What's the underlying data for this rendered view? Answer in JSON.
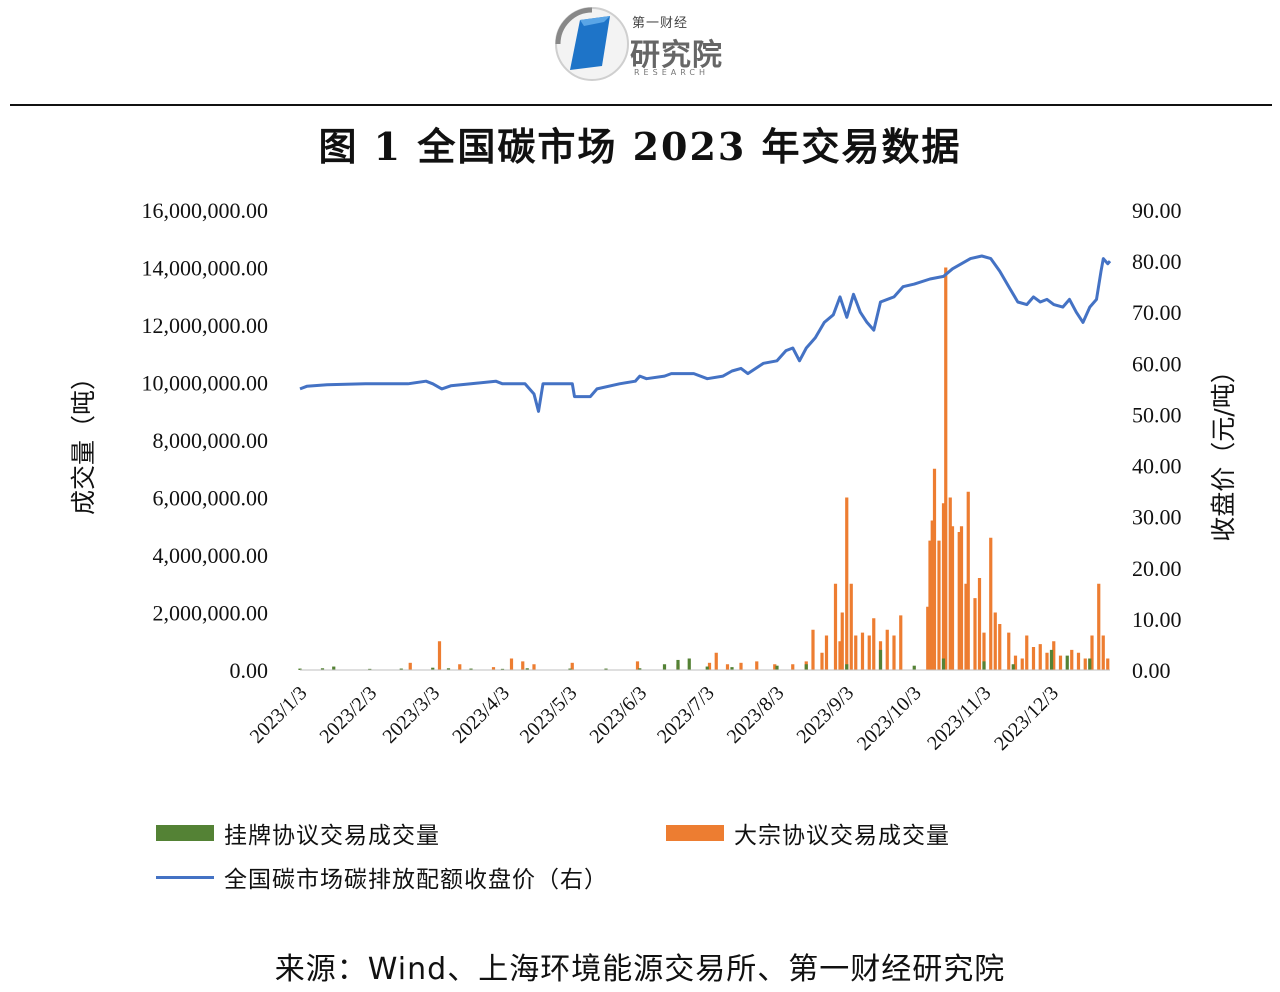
{
  "header": {
    "brand_top": "第一财经",
    "brand_main": "研究院",
    "brand_sub": "RESEARCH"
  },
  "colors": {
    "listed": "#548235",
    "block": "#ED7D31",
    "price": "#4472C4"
  },
  "chart_data": {
    "type": "bar+line",
    "title": "图 1 全国碳市场 2023 年交易数据",
    "y_left_label": "成交量（吨）",
    "y_right_label": "收盘价（元/吨）",
    "y_left_ticks": [
      "0.00",
      "2,000,000.00",
      "4,000,000.00",
      "6,000,000.00",
      "8,000,000.00",
      "10,000,000.00",
      "12,000,000.00",
      "14,000,000.00",
      "16,000,000.00"
    ],
    "y_right_ticks": [
      "0.00",
      "10.00",
      "20.00",
      "30.00",
      "40.00",
      "50.00",
      "60.00",
      "70.00",
      "80.00",
      "90.00"
    ],
    "y_left_range": [
      0,
      16000000
    ],
    "y_right_range": [
      0,
      90
    ],
    "x_ticks": [
      "2023/1/3",
      "2023/2/3",
      "2023/3/3",
      "2023/4/3",
      "2023/5/3",
      "2023/6/3",
      "2023/7/3",
      "2023/8/3",
      "2023/9/3",
      "2023/10/3",
      "2023/11/3",
      "2023/12/3"
    ],
    "x_range": [
      "2023/1/3",
      "2023/12/29"
    ],
    "series": [
      {
        "name": "挂牌协议交易成交量",
        "type": "bar",
        "axis": "left",
        "points": [
          [
            "2023/1/3",
            50000
          ],
          [
            "2023/1/13",
            60000
          ],
          [
            "2023/1/18",
            120000
          ],
          [
            "2023/2/3",
            40000
          ],
          [
            "2023/2/17",
            50000
          ],
          [
            "2023/3/3",
            80000
          ],
          [
            "2023/3/10",
            60000
          ],
          [
            "2023/3/20",
            50000
          ],
          [
            "2023/4/3",
            40000
          ],
          [
            "2023/4/14",
            60000
          ],
          [
            "2023/5/3",
            50000
          ],
          [
            "2023/5/19",
            50000
          ],
          [
            "2023/6/3",
            60000
          ],
          [
            "2023/6/14",
            200000
          ],
          [
            "2023/6/20",
            350000
          ],
          [
            "2023/6/25",
            400000
          ],
          [
            "2023/7/3",
            120000
          ],
          [
            "2023/7/14",
            100000
          ],
          [
            "2023/8/3",
            150000
          ],
          [
            "2023/8/16",
            200000
          ],
          [
            "2023/9/3",
            200000
          ],
          [
            "2023/9/18",
            700000
          ],
          [
            "2023/10/3",
            150000
          ],
          [
            "2023/10/16",
            400000
          ],
          [
            "2023/11/3",
            300000
          ],
          [
            "2023/11/16",
            200000
          ],
          [
            "2023/12/3",
            700000
          ],
          [
            "2023/12/10",
            500000
          ],
          [
            "2023/12/20",
            400000
          ]
        ]
      },
      {
        "name": "大宗协议交易成交量",
        "type": "bar",
        "axis": "left",
        "points": [
          [
            "2023/2/21",
            250000
          ],
          [
            "2023/3/6",
            1000000
          ],
          [
            "2023/3/15",
            200000
          ],
          [
            "2023/3/30",
            100000
          ],
          [
            "2023/4/7",
            400000
          ],
          [
            "2023/4/12",
            300000
          ],
          [
            "2023/4/17",
            200000
          ],
          [
            "2023/5/4",
            250000
          ],
          [
            "2023/6/2",
            300000
          ],
          [
            "2023/6/20",
            200000
          ],
          [
            "2023/7/4",
            250000
          ],
          [
            "2023/7/7",
            600000
          ],
          [
            "2023/7/12",
            200000
          ],
          [
            "2023/7/18",
            250000
          ],
          [
            "2023/7/25",
            300000
          ],
          [
            "2023/8/2",
            200000
          ],
          [
            "2023/8/10",
            200000
          ],
          [
            "2023/8/16",
            300000
          ],
          [
            "2023/8/19",
            1400000
          ],
          [
            "2023/8/23",
            600000
          ],
          [
            "2023/8/25",
            1200000
          ],
          [
            "2023/8/29",
            3000000
          ],
          [
            "2023/8/31",
            1000000
          ],
          [
            "2023/9/1",
            2000000
          ],
          [
            "2023/9/3",
            6000000
          ],
          [
            "2023/9/5",
            3000000
          ],
          [
            "2023/9/7",
            1200000
          ],
          [
            "2023/9/10",
            1300000
          ],
          [
            "2023/9/13",
            1200000
          ],
          [
            "2023/9/15",
            1800000
          ],
          [
            "2023/9/18",
            1000000
          ],
          [
            "2023/9/21",
            1400000
          ],
          [
            "2023/9/24",
            1200000
          ],
          [
            "2023/9/27",
            1900000
          ],
          [
            "2023/10/9",
            2200000
          ],
          [
            "2023/10/10",
            4500000
          ],
          [
            "2023/10/11",
            5200000
          ],
          [
            "2023/10/12",
            7000000
          ],
          [
            "2023/10/14",
            4500000
          ],
          [
            "2023/10/16",
            5800000
          ],
          [
            "2023/10/17",
            14000000
          ],
          [
            "2023/10/19",
            6000000
          ],
          [
            "2023/10/20",
            5000000
          ],
          [
            "2023/10/23",
            4800000
          ],
          [
            "2023/10/24",
            5000000
          ],
          [
            "2023/10/26",
            3000000
          ],
          [
            "2023/10/27",
            6200000
          ],
          [
            "2023/10/30",
            2500000
          ],
          [
            "2023/11/1",
            3200000
          ],
          [
            "2023/11/3",
            1300000
          ],
          [
            "2023/11/6",
            4600000
          ],
          [
            "2023/11/8",
            2000000
          ],
          [
            "2023/11/10",
            1600000
          ],
          [
            "2023/11/14",
            1300000
          ],
          [
            "2023/11/17",
            500000
          ],
          [
            "2023/11/20",
            400000
          ],
          [
            "2023/11/22",
            1200000
          ],
          [
            "2023/11/25",
            800000
          ],
          [
            "2023/11/28",
            900000
          ],
          [
            "2023/12/1",
            600000
          ],
          [
            "2023/12/4",
            1000000
          ],
          [
            "2023/12/7",
            500000
          ],
          [
            "2023/12/12",
            700000
          ],
          [
            "2023/12/15",
            600000
          ],
          [
            "2023/12/18",
            400000
          ],
          [
            "2023/12/21",
            1200000
          ],
          [
            "2023/12/24",
            3000000
          ],
          [
            "2023/12/26",
            1200000
          ],
          [
            "2023/12/28",
            400000
          ]
        ]
      },
      {
        "name": "全国碳市场碳排放配额收盘价（右）",
        "type": "line",
        "axis": "right",
        "points": [
          [
            "2023/1/3",
            55.0
          ],
          [
            "2023/1/6",
            55.5
          ],
          [
            "2023/1/15",
            55.8
          ],
          [
            "2023/2/1",
            56.0
          ],
          [
            "2023/2/20",
            56.0
          ],
          [
            "2023/2/28",
            56.5
          ],
          [
            "2023/3/3",
            56.0
          ],
          [
            "2023/3/7",
            55.0
          ],
          [
            "2023/3/11",
            55.6
          ],
          [
            "2023/3/20",
            56.0
          ],
          [
            "2023/3/31",
            56.5
          ],
          [
            "2023/4/3",
            56.0
          ],
          [
            "2023/4/13",
            56.0
          ],
          [
            "2023/4/17",
            54.0
          ],
          [
            "2023/4/19",
            50.6
          ],
          [
            "2023/4/21",
            56.0
          ],
          [
            "2023/5/4",
            56.0
          ],
          [
            "2023/5/5",
            53.5
          ],
          [
            "2023/5/12",
            53.5
          ],
          [
            "2023/5/15",
            55.0
          ],
          [
            "2023/5/25",
            56.0
          ],
          [
            "2023/6/1",
            56.5
          ],
          [
            "2023/6/3",
            57.5
          ],
          [
            "2023/6/6",
            57.0
          ],
          [
            "2023/6/14",
            57.5
          ],
          [
            "2023/6/17",
            58.0
          ],
          [
            "2023/6/27",
            58.0
          ],
          [
            "2023/7/3",
            57.0
          ],
          [
            "2023/7/10",
            57.5
          ],
          [
            "2023/7/14",
            58.5
          ],
          [
            "2023/7/18",
            59.0
          ],
          [
            "2023/7/21",
            58.0
          ],
          [
            "2023/7/28",
            60.0
          ],
          [
            "2023/8/3",
            60.5
          ],
          [
            "2023/8/7",
            62.5
          ],
          [
            "2023/8/10",
            63.0
          ],
          [
            "2023/8/13",
            60.5
          ],
          [
            "2023/8/16",
            63.0
          ],
          [
            "2023/8/20",
            65.0
          ],
          [
            "2023/8/24",
            68.0
          ],
          [
            "2023/8/28",
            69.5
          ],
          [
            "2023/8/31",
            73.0
          ],
          [
            "2023/9/3",
            69.0
          ],
          [
            "2023/9/6",
            73.5
          ],
          [
            "2023/9/9",
            70.0
          ],
          [
            "2023/9/12",
            68.0
          ],
          [
            "2023/9/15",
            66.5
          ],
          [
            "2023/9/18",
            72.0
          ],
          [
            "2023/9/24",
            73.0
          ],
          [
            "2023/9/28",
            75.0
          ],
          [
            "2023/10/3",
            75.5
          ],
          [
            "2023/10/10",
            76.5
          ],
          [
            "2023/10/16",
            77.0
          ],
          [
            "2023/10/20",
            78.5
          ],
          [
            "2023/10/24",
            79.5
          ],
          [
            "2023/10/28",
            80.5
          ],
          [
            "2023/11/2",
            81.0
          ],
          [
            "2023/11/6",
            80.5
          ],
          [
            "2023/11/10",
            78.0
          ],
          [
            "2023/11/14",
            75.0
          ],
          [
            "2023/11/18",
            72.0
          ],
          [
            "2023/11/22",
            71.5
          ],
          [
            "2023/11/25",
            73.0
          ],
          [
            "2023/11/28",
            72.0
          ],
          [
            "2023/12/1",
            72.5
          ],
          [
            "2023/12/4",
            71.5
          ],
          [
            "2023/12/8",
            71.0
          ],
          [
            "2023/12/11",
            72.5
          ],
          [
            "2023/12/14",
            70.0
          ],
          [
            "2023/12/17",
            68.0
          ],
          [
            "2023/12/20",
            71.0
          ],
          [
            "2023/12/23",
            72.5
          ],
          [
            "2023/12/25",
            78.0
          ],
          [
            "2023/12/26",
            80.5
          ],
          [
            "2023/12/27",
            80.0
          ],
          [
            "2023/12/28",
            79.5
          ],
          [
            "2023/12/29",
            80.0
          ]
        ]
      }
    ]
  },
  "source": "来源：Wind、上海环境能源交易所、第一财经研究院"
}
